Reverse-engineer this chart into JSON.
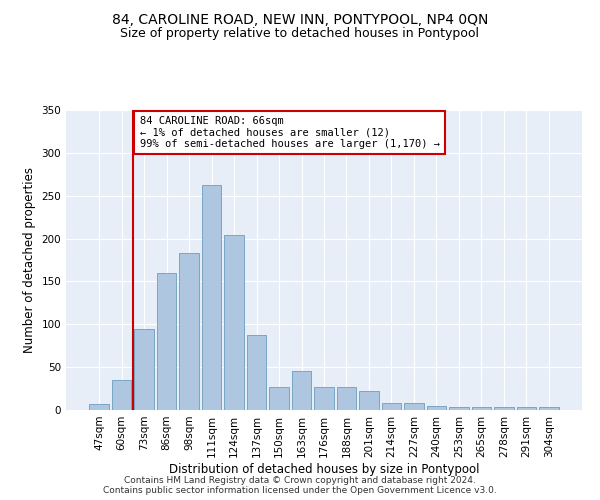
{
  "title": "84, CAROLINE ROAD, NEW INN, PONTYPOOL, NP4 0QN",
  "subtitle": "Size of property relative to detached houses in Pontypool",
  "xlabel": "Distribution of detached houses by size in Pontypool",
  "ylabel": "Number of detached properties",
  "bar_color": "#aec6df",
  "bar_edge_color": "#6a9fc0",
  "categories": [
    "47sqm",
    "60sqm",
    "73sqm",
    "86sqm",
    "98sqm",
    "111sqm",
    "124sqm",
    "137sqm",
    "150sqm",
    "163sqm",
    "176sqm",
    "188sqm",
    "201sqm",
    "214sqm",
    "227sqm",
    "240sqm",
    "253sqm",
    "265sqm",
    "278sqm",
    "291sqm",
    "304sqm"
  ],
  "values": [
    7,
    35,
    95,
    160,
    183,
    263,
    204,
    88,
    27,
    46,
    27,
    27,
    22,
    8,
    8,
    5,
    3,
    4,
    4,
    3,
    4
  ],
  "ylim": [
    0,
    350
  ],
  "yticks": [
    0,
    50,
    100,
    150,
    200,
    250,
    300,
    350
  ],
  "vline_x_idx": 1,
  "annotation_text": "84 CAROLINE ROAD: 66sqm\n← 1% of detached houses are smaller (12)\n99% of semi-detached houses are larger (1,170) →",
  "annotation_box_color": "#ffffff",
  "annotation_box_edge": "#cc0000",
  "vline_color": "#cc0000",
  "plot_bg_color": "#e8eef8",
  "footer_line1": "Contains HM Land Registry data © Crown copyright and database right 2024.",
  "footer_line2": "Contains public sector information licensed under the Open Government Licence v3.0.",
  "title_fontsize": 10,
  "subtitle_fontsize": 9,
  "axis_label_fontsize": 8.5,
  "tick_fontsize": 7.5,
  "annotation_fontsize": 7.5,
  "footer_fontsize": 6.5
}
